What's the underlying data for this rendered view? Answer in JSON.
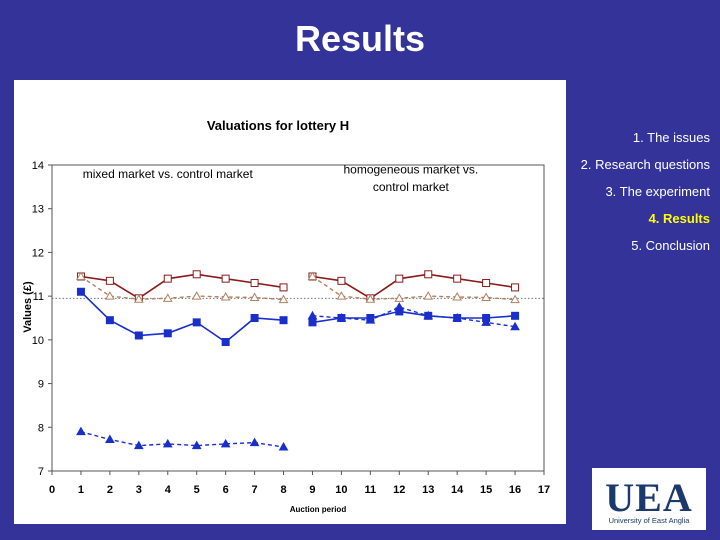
{
  "slide": {
    "title": "Results"
  },
  "nav": {
    "items": [
      {
        "label": "1.  The issues",
        "active": false
      },
      {
        "label": "2. Research questions",
        "active": false
      },
      {
        "label": "3.  The experiment",
        "active": false
      },
      {
        "label": "4.  Results",
        "active": true
      },
      {
        "label": "5.  Conclusion",
        "active": false
      }
    ]
  },
  "logo": {
    "mark": "UEA",
    "subtitle": "University of East Anglia"
  },
  "chart_data": {
    "type": "line",
    "title": "Valuations for lottery H",
    "xlabel": "Auction period",
    "ylabel": "Values (£)",
    "xlim": [
      0,
      17
    ],
    "ylim": [
      7,
      14
    ],
    "xticks": [
      "0",
      "1",
      "2",
      "3",
      "4",
      "5",
      "6",
      "7",
      "8",
      "9",
      "10",
      "11",
      "12",
      "13",
      "14",
      "15",
      "16",
      "17"
    ],
    "yticks": [
      "7",
      "8",
      "9",
      "10",
      "11",
      "12",
      "13",
      "14"
    ],
    "reference_line": 10.95,
    "annotations": [
      {
        "text": "mixed market vs. control market",
        "x": 4.0,
        "y": 13.7
      },
      {
        "text": "homogeneous market vs.",
        "x": 12.4,
        "y": 13.8
      },
      {
        "text": "control market",
        "x": 12.4,
        "y": 13.4
      }
    ],
    "series": [
      {
        "style": "red-open-square-solid",
        "color": "#8b1a1a",
        "segments": [
          {
            "x": [
              1,
              2,
              3,
              4,
              5,
              6,
              7,
              8
            ],
            "y": [
              11.45,
              11.35,
              10.95,
              11.4,
              11.5,
              11.4,
              11.3,
              11.2
            ]
          },
          {
            "x": [
              9,
              10,
              11,
              12,
              13,
              14,
              15,
              16
            ],
            "y": [
              11.45,
              11.35,
              10.95,
              11.4,
              11.5,
              11.4,
              11.3,
              11.2
            ]
          }
        ]
      },
      {
        "style": "brown-open-triangle-dashed",
        "color": "#b08060",
        "segments": [
          {
            "x": [
              1,
              2,
              3,
              4,
              5,
              6,
              7,
              8
            ],
            "y": [
              11.45,
              11.0,
              10.93,
              10.95,
              11.0,
              10.98,
              10.97,
              10.92
            ]
          },
          {
            "x": [
              9,
              10,
              11,
              12,
              13,
              14,
              15,
              16
            ],
            "y": [
              11.45,
              11.0,
              10.93,
              10.95,
              11.0,
              10.98,
              10.97,
              10.92
            ]
          }
        ]
      },
      {
        "style": "blue-filled-square-solid",
        "color": "#1a2ecc",
        "segments": [
          {
            "x": [
              1,
              2,
              3,
              4,
              5,
              6,
              7,
              8
            ],
            "y": [
              11.1,
              10.45,
              10.1,
              10.15,
              10.4,
              9.95,
              10.5,
              10.45
            ]
          },
          {
            "x": [
              9,
              10,
              11,
              12,
              13,
              14,
              15,
              16
            ],
            "y": [
              10.4,
              10.5,
              10.5,
              10.65,
              10.55,
              10.5,
              10.5,
              10.55
            ]
          }
        ]
      },
      {
        "style": "blue-filled-triangle-dashed",
        "color": "#1a2ecc",
        "segments": [
          {
            "x": [
              1,
              2,
              3,
              4,
              5,
              6,
              7,
              8
            ],
            "y": [
              7.9,
              7.72,
              7.58,
              7.62,
              7.58,
              7.62,
              7.65,
              7.55
            ]
          },
          {
            "x": [
              9,
              10,
              11,
              12,
              13,
              14,
              15,
              16
            ],
            "y": [
              10.55,
              10.5,
              10.45,
              10.75,
              10.55,
              10.5,
              10.4,
              10.3
            ]
          }
        ]
      }
    ]
  }
}
